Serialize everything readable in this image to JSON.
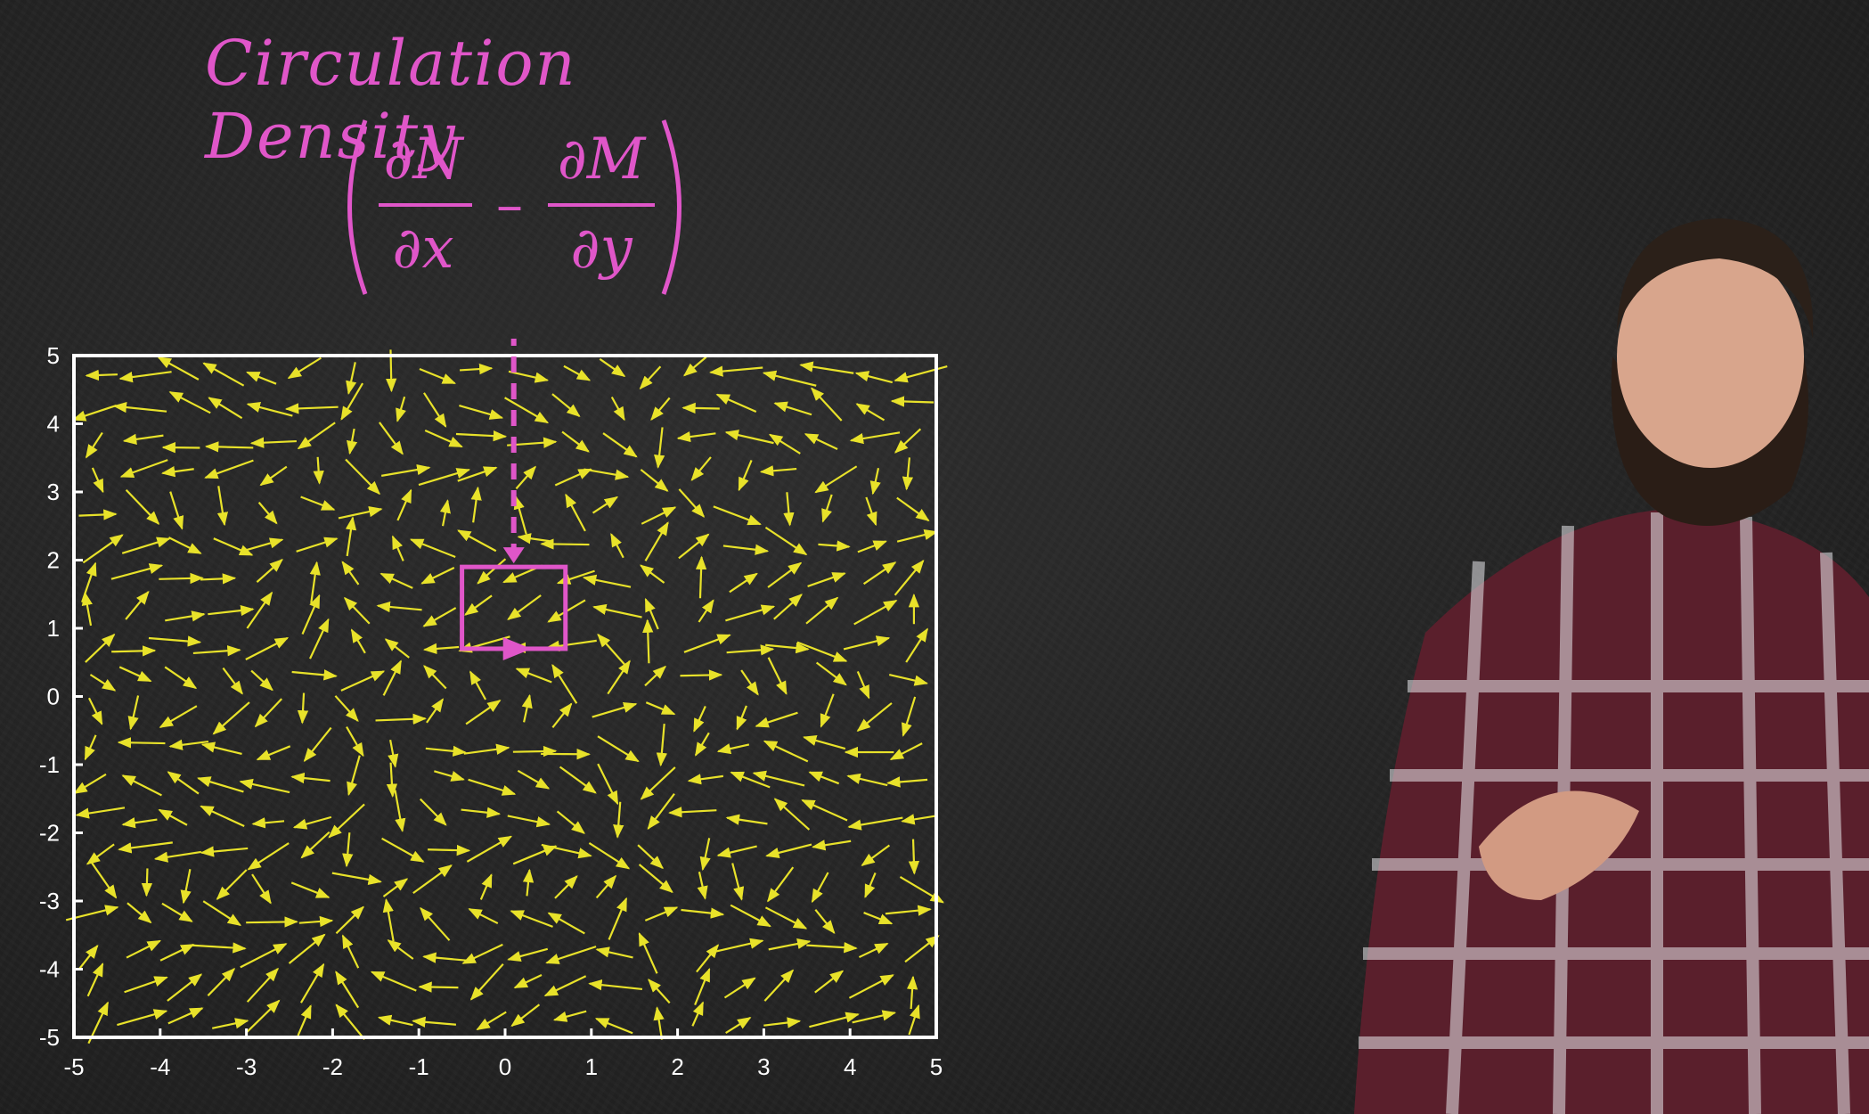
{
  "title": "Circulation Density",
  "formula": {
    "numerator_left": "∂N",
    "denominator_left": "∂x",
    "operator": "–",
    "numerator_right": "∂M",
    "denominator_right": "∂y"
  },
  "chart_data": {
    "type": "quiver",
    "xlim": [
      -5,
      5
    ],
    "ylim": [
      -5,
      5
    ],
    "x_ticks": [
      "-5",
      "-4",
      "-3",
      "-2",
      "-1",
      "0",
      "1",
      "2",
      "3",
      "4",
      "5"
    ],
    "y_ticks": [
      "5",
      "4",
      "3",
      "2",
      "1",
      "0",
      "-1",
      "-2",
      "-3",
      "-4",
      "-5"
    ],
    "arrow_color": "#e8e22a",
    "highlight_box": {
      "x": [
        -0.5,
        0.7
      ],
      "y": [
        0.7,
        1.9
      ]
    },
    "grid": false
  },
  "colors": {
    "accent": "#e056c9",
    "axes": "#ffffff",
    "arrows": "#e8e22a",
    "board": "#262626"
  }
}
